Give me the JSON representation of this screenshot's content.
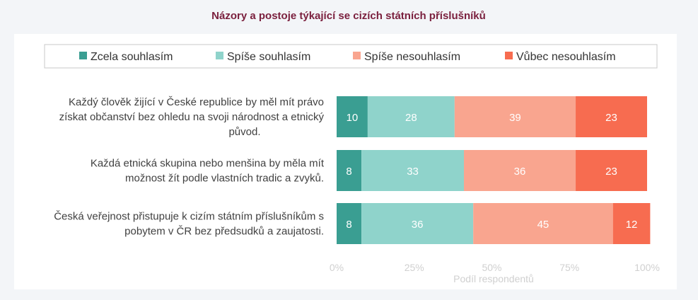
{
  "chart_data": {
    "type": "bar",
    "orientation": "horizontal",
    "stacked": true,
    "normalized": true,
    "title": "Názory a postoje týkající se cizích státních příslušníků",
    "xlabel": "Podíl respondentů",
    "ylabel": "",
    "xlim": [
      0,
      100
    ],
    "x_ticks": [
      "0%",
      "25%",
      "50%",
      "75%",
      "100%"
    ],
    "legend_position": "top",
    "grid": false,
    "categories": [
      [
        "Každý člověk žijící v České republice by měl mít právo",
        "získat občanství bez ohledu na svoji národnost a etnický",
        "původ."
      ],
      [
        "Každá etnická skupina nebo menšina by měla mít",
        "možnost žít podle vlastních tradic a zvyků."
      ],
      [
        "Česká veřejnost přistupuje k cizím státním příslušníkům s",
        "pobytem v ČR bez předsudků a zaujatosti."
      ]
    ],
    "series": [
      {
        "name": "Zcela souhlasím",
        "color": "#3a9e92",
        "values": [
          10,
          8,
          8
        ]
      },
      {
        "name": "Spíše souhlasím",
        "color": "#8fd3cb",
        "values": [
          28,
          33,
          36
        ]
      },
      {
        "name": "Spíše nesouhlasím",
        "color": "#f9a58f",
        "values": [
          39,
          36,
          45
        ]
      },
      {
        "name": "Vůbec nesouhlasím",
        "color": "#f76c50",
        "values": [
          23,
          23,
          12
        ]
      }
    ]
  }
}
